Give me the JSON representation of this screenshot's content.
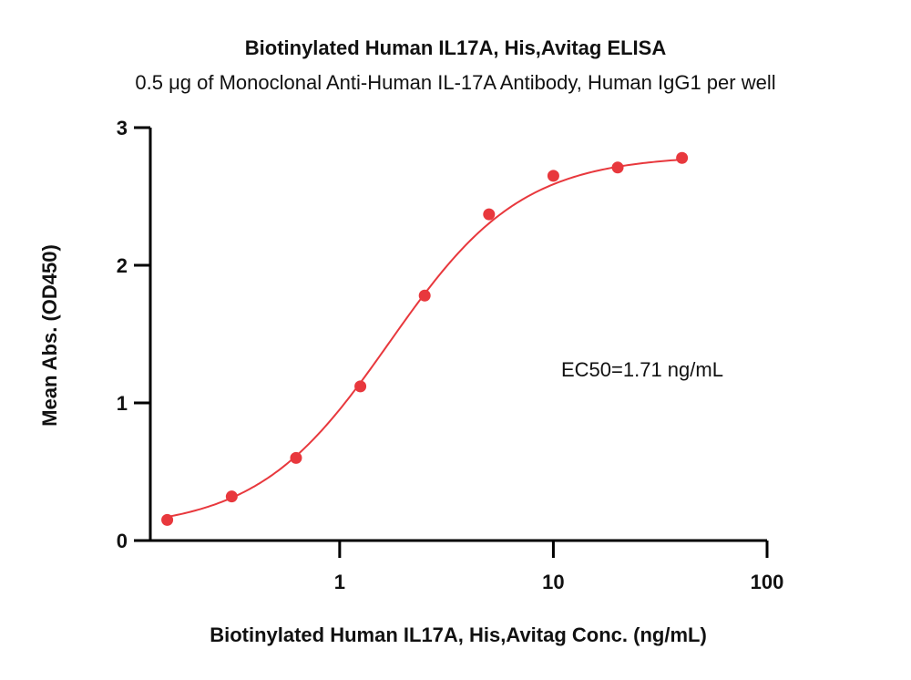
{
  "chart_data": {
    "type": "scatter",
    "title": "Biotinylated Human IL17A, His,Avitag ELISA",
    "subtitle": "0.5 μg of Monoclonal Anti-Human IL-17A Antibody, Human IgG1  per well",
    "xlabel": "Biotinylated Human IL17A, His,Avitag Conc. (ng/mL)",
    "ylabel": "Mean Abs. (OD450)",
    "x_scale": "log",
    "xlim": [
      0.13,
      100
    ],
    "ylim": [
      0,
      3
    ],
    "x_ticks": [
      {
        "value": 1,
        "label": "1"
      },
      {
        "value": 10,
        "label": "10"
      },
      {
        "value": 100,
        "label": "100"
      }
    ],
    "y_ticks": [
      {
        "value": 0,
        "label": "0"
      },
      {
        "value": 1,
        "label": "1"
      },
      {
        "value": 2,
        "label": "2"
      },
      {
        "value": 3,
        "label": "3"
      }
    ],
    "series": [
      {
        "name": "Mean Abs.",
        "x": [
          0.156,
          0.3125,
          0.625,
          1.25,
          2.5,
          5,
          10,
          20,
          40
        ],
        "y": [
          0.15,
          0.32,
          0.6,
          1.12,
          1.78,
          2.37,
          2.65,
          2.71,
          2.78
        ],
        "color": "#e8383d"
      }
    ],
    "fit": {
      "model": "4PL",
      "bottom": 0.08,
      "top": 2.8,
      "ec50": 1.71,
      "hill": 1.4,
      "color": "#e8383d"
    },
    "annotation": "EC50=1.71 ng/mL",
    "grid": false,
    "legend": "none"
  },
  "colors": {
    "series": "#e8383d",
    "axis": "#000000",
    "text": "#111111"
  }
}
